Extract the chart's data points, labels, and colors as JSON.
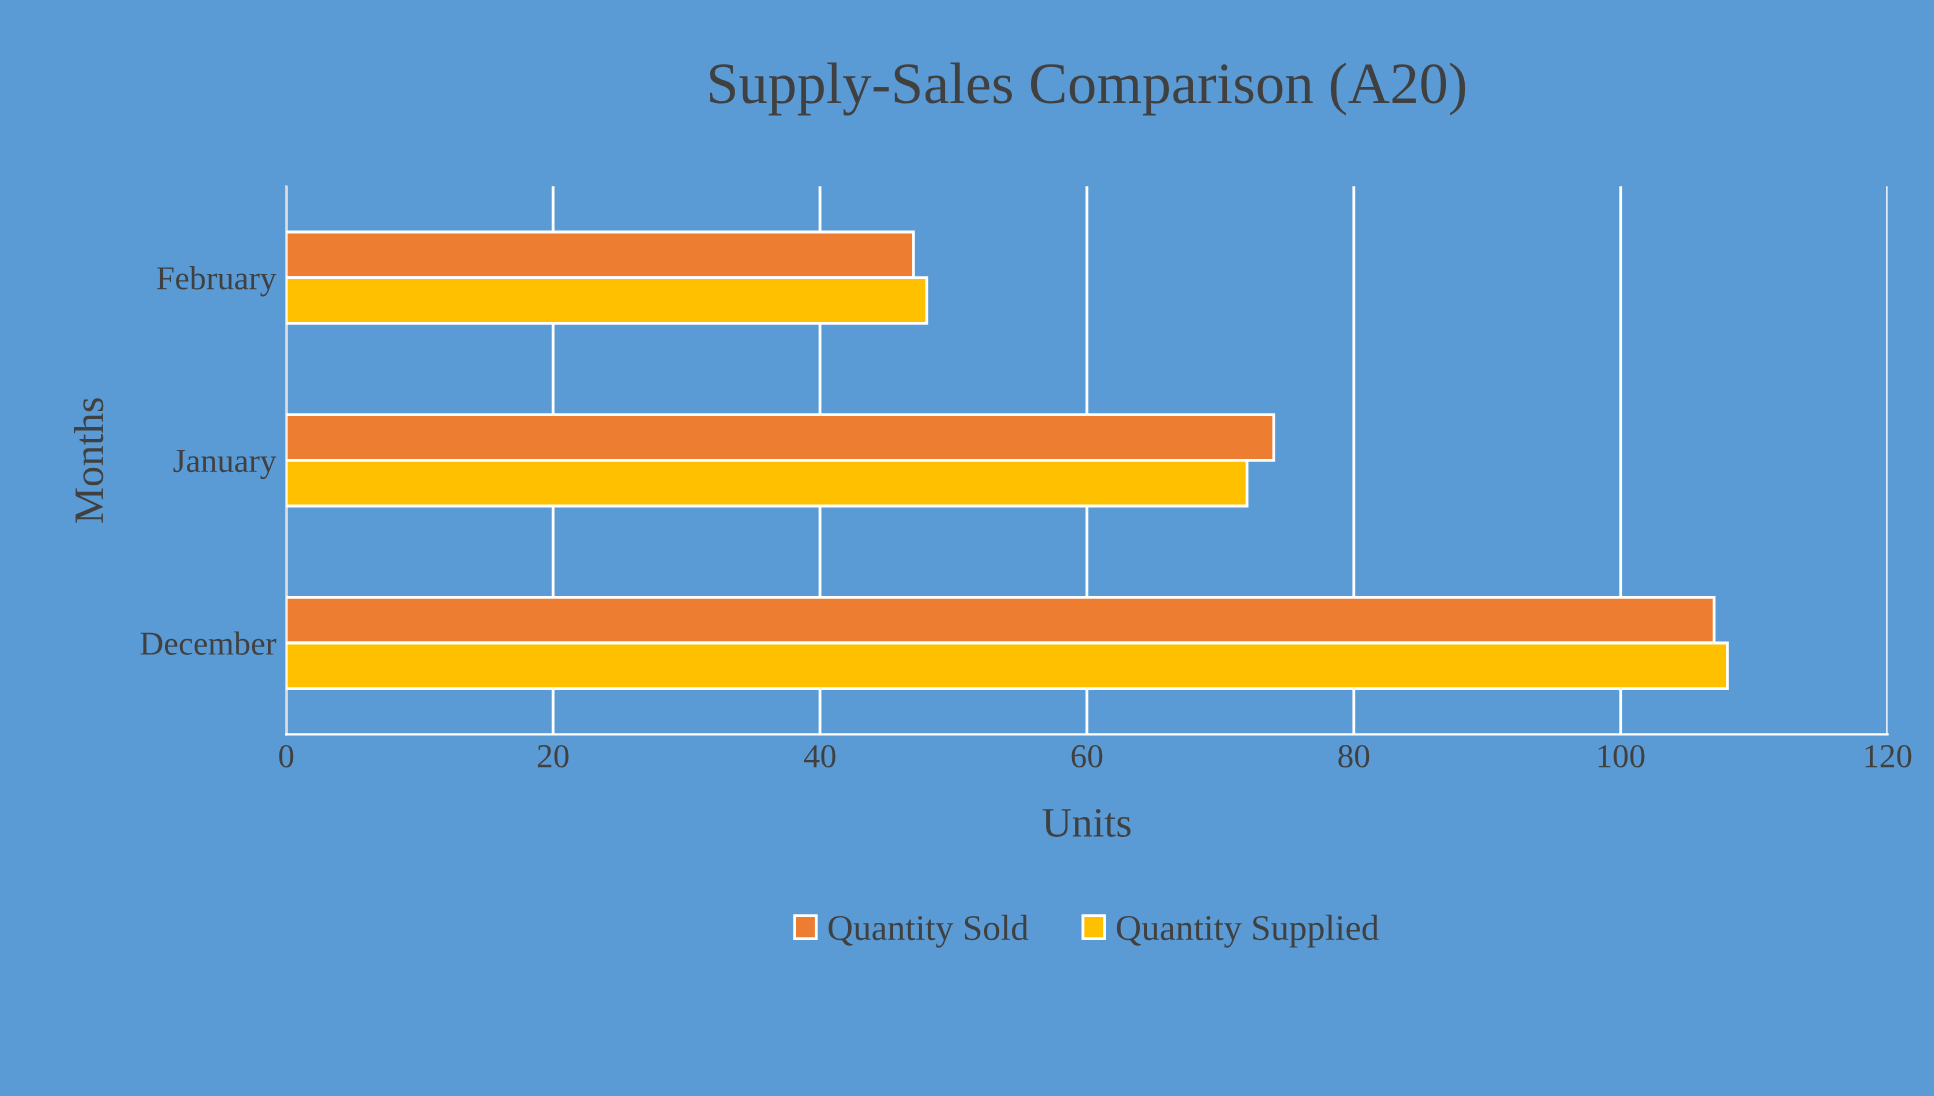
{
  "chart_data": {
    "type": "bar",
    "orientation": "horizontal",
    "title": "Supply-Sales Comparison (A20)",
    "xlabel": "Units",
    "ylabel": "Months",
    "categories": [
      "February",
      "January",
      "December"
    ],
    "series": [
      {
        "name": "Quantity Sold",
        "color": "#ed7d31",
        "values": [
          47,
          74,
          107
        ]
      },
      {
        "name": "Quantity Supplied",
        "color": "#ffc000",
        "values": [
          48,
          72,
          108
        ]
      }
    ],
    "xlim": [
      0,
      120
    ],
    "xticks": [
      0,
      20,
      40,
      60,
      80,
      100,
      120
    ],
    "grid": "x",
    "legend": "bottom"
  }
}
